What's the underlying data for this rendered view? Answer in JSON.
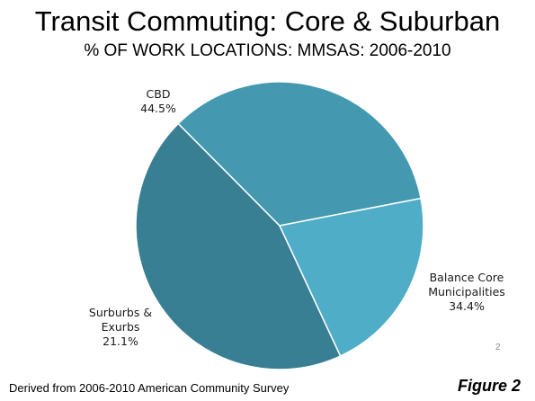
{
  "slide": {
    "title": "Transit Commuting: Core & Suburban",
    "subtitle": "% OF WORK LOCATIONS: MMSAS: 2006-2010",
    "page_number": "2",
    "source": "Derived from 2006-2010  American Community Survey",
    "figure_label": "Figure 2"
  },
  "chart_data": {
    "type": "pie",
    "title": "Transit Commuting: Core & Suburban",
    "subtitle": "% OF WORK LOCATIONS: MMSAS: 2006-2010",
    "slices": [
      {
        "label_lines": [
          "CBD"
        ],
        "value": 44.5,
        "value_text": "44.5%",
        "color": "#387f94"
      },
      {
        "label_lines": [
          "Balance Core",
          "Municipalities"
        ],
        "value": 34.4,
        "value_text": "34.4%",
        "color": "#4499b0"
      },
      {
        "label_lines": [
          "Surburbs &",
          "Exurbs"
        ],
        "value": 21.1,
        "value_text": "21.1%",
        "color": "#50adc7"
      }
    ],
    "legend": "none"
  }
}
